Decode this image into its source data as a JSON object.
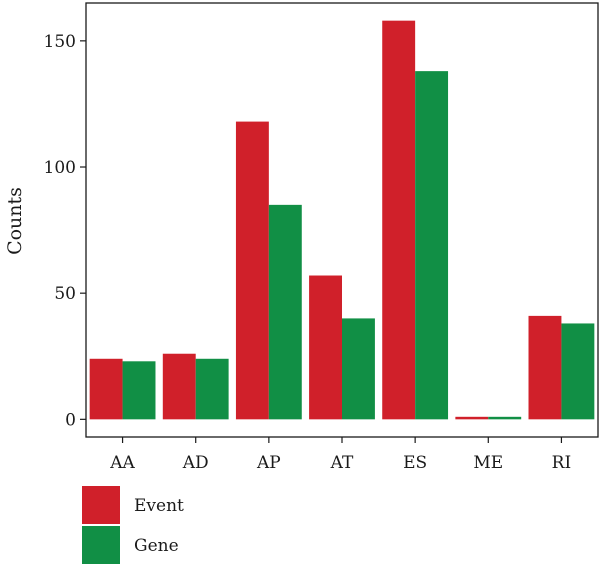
{
  "chart_data": {
    "type": "bar",
    "ylabel": "Counts",
    "xlabel": "",
    "categories": [
      "AA",
      "AD",
      "AP",
      "AT",
      "ES",
      "ME",
      "RI"
    ],
    "series": [
      {
        "name": "Event",
        "color": "#d0202a",
        "values": [
          24,
          26,
          118,
          57,
          158,
          1,
          41
        ]
      },
      {
        "name": "Gene",
        "color": "#118f45",
        "values": [
          23,
          24,
          85,
          40,
          138,
          1,
          38
        ]
      }
    ],
    "ylim": [
      -7,
      165
    ],
    "yticks": [
      0,
      50,
      100,
      150
    ],
    "grid": false,
    "legend_position": "bottom-left"
  }
}
